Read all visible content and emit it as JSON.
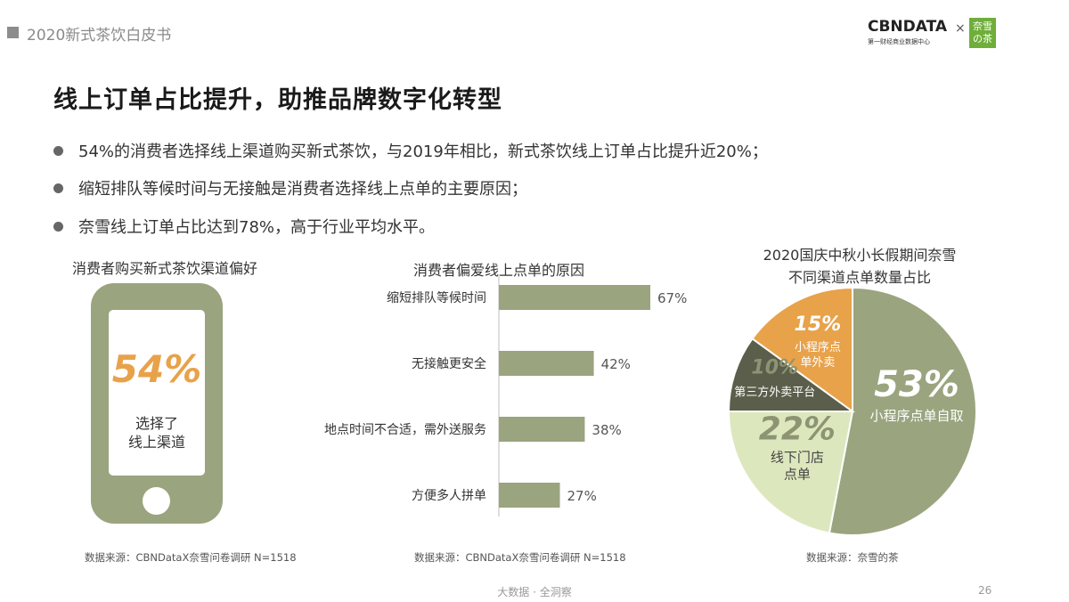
{
  "header": {
    "report_title": "2020新式茶饮白皮书"
  },
  "logo": {
    "brand": "CBNDATA",
    "brand_sub": "第一财经商业数据中心",
    "times": "×",
    "partner_line1": "奈雪",
    "partner_line2": "の茶"
  },
  "main_title": "线上订单占比提升，助推品牌数字化转型",
  "bullets": [
    "54%的消费者选择线上渠道购买新式茶饮，与2019年相比，新式茶饮线上订单占比提升近20%；",
    "缩短排队等候时间与无接触是消费者选择线上点单的主要原因；",
    "奈雪线上订单占比达到78%，高于行业平均水平。"
  ],
  "phone_section": {
    "title": "消费者购买新式茶饮渠道偏好",
    "percent": "54%",
    "line1": "选择了",
    "line2": "线上渠道",
    "source": "数据来源：CBNDataX奈雪问卷调研 N=1518"
  },
  "bar_section": {
    "title": "消费者偏爱线上点单的原因",
    "source": "数据来源：CBNDataX奈雪问卷调研 N=1518"
  },
  "pie_section": {
    "title_line1": "2020国庆中秋小长假期间奈雪",
    "title_line2": "不同渠道点单数量占比",
    "source": "数据来源：奈雪的茶"
  },
  "footer": {
    "center": "大数据 · 全洞察",
    "page": "26"
  },
  "colors": {
    "olive": "#9aa47e",
    "orange": "#e8a24a",
    "dark": "#5a5e4b",
    "light_green": "#dde7bd",
    "bar": "#9aa47e"
  },
  "chart_data": [
    {
      "type": "bar",
      "orientation": "horizontal",
      "title": "消费者偏爱线上点单的原因",
      "categories": [
        "缩短排队等候时间",
        "无接触更安全",
        "地点时间不合适，需外送服务",
        "方便多人拼单"
      ],
      "values": [
        67,
        42,
        38,
        27
      ],
      "value_labels": [
        "67%",
        "42%",
        "38%",
        "27%"
      ],
      "unit": "%",
      "xlim": [
        0,
        100
      ],
      "grid": false
    },
    {
      "type": "pie",
      "title": "2020国庆中秋小长假期间奈雪不同渠道点单数量占比",
      "slices": [
        {
          "label": "小程序点单自取",
          "value": 53,
          "value_label": "53%",
          "color": "#9aa47e"
        },
        {
          "label": "线下门店点单",
          "value": 22,
          "value_label": "22%",
          "color": "#dde7bd"
        },
        {
          "label": "第三方外卖平台",
          "value": 10,
          "value_label": "10%",
          "color": "#5a5e4b"
        },
        {
          "label": "小程序点单外卖",
          "value": 15,
          "value_label": "15%",
          "color": "#e8a24a"
        }
      ]
    }
  ]
}
